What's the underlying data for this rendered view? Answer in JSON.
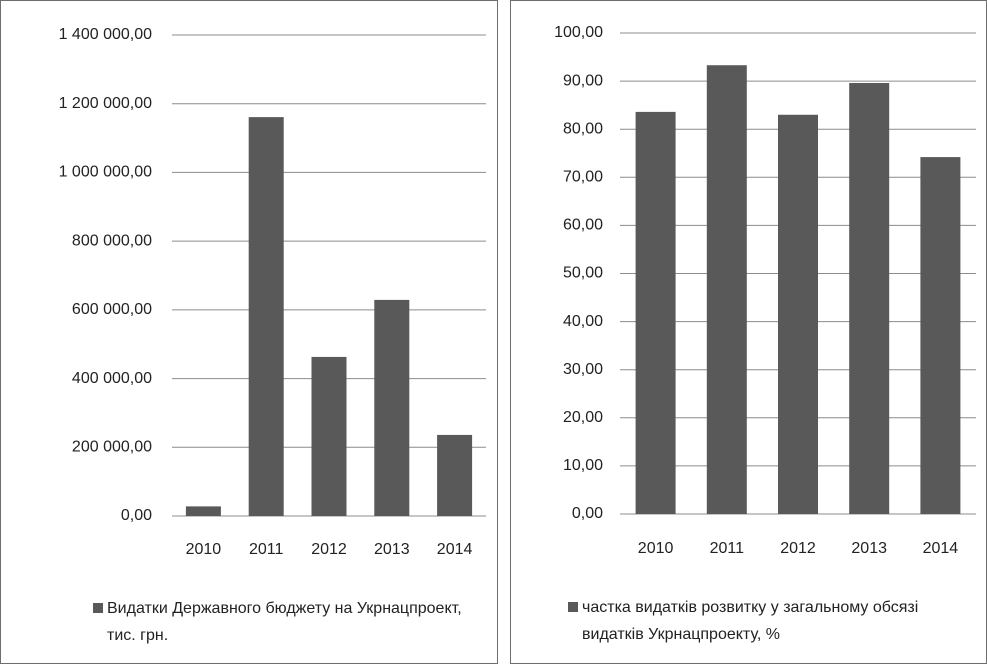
{
  "chart_data": [
    {
      "type": "bar",
      "categories": [
        "2010",
        "2011",
        "2012",
        "2013",
        "2014"
      ],
      "series": [
        {
          "name": "Видатки Державного бюджету на Укрнацпроект, тис. грн.",
          "color": "#595959",
          "values": [
            28000,
            1161000,
            463000,
            629000,
            236000
          ]
        }
      ],
      "ylim": [
        0,
        1400000
      ],
      "yticks": [
        {
          "value": 0,
          "label": "0,00"
        },
        {
          "value": 200000,
          "label": "200 000,00"
        },
        {
          "value": 400000,
          "label": "400 000,00"
        },
        {
          "value": 600000,
          "label": "600 000,00"
        },
        {
          "value": 800000,
          "label": "800 000,00"
        },
        {
          "value": 1000000,
          "label": "1 000 000,00"
        },
        {
          "value": 1200000,
          "label": "1 200 000,00"
        },
        {
          "value": 1400000,
          "label": "1 400 000,00"
        }
      ],
      "grid": true,
      "legend": "bottom"
    },
    {
      "type": "bar",
      "categories": [
        "2010",
        "2011",
        "2012",
        "2013",
        "2014"
      ],
      "series": [
        {
          "name": "частка видатків розвитку у загальному обсязі видатків Укрнацпроекту, %",
          "color": "#595959",
          "values": [
            83.6,
            93.3,
            83.0,
            89.6,
            74.2
          ]
        }
      ],
      "ylim": [
        0,
        100
      ],
      "yticks": [
        {
          "value": 0,
          "label": "0,00"
        },
        {
          "value": 10,
          "label": "10,00"
        },
        {
          "value": 20,
          "label": "20,00"
        },
        {
          "value": 30,
          "label": "30,00"
        },
        {
          "value": 40,
          "label": "40,00"
        },
        {
          "value": 50,
          "label": "50,00"
        },
        {
          "value": 60,
          "label": "60,00"
        },
        {
          "value": 70,
          "label": "70,00"
        },
        {
          "value": 80,
          "label": "80,00"
        },
        {
          "value": 90,
          "label": "90,00"
        },
        {
          "value": 100,
          "label": "100,00"
        }
      ],
      "grid": true,
      "legend": "bottom"
    }
  ]
}
